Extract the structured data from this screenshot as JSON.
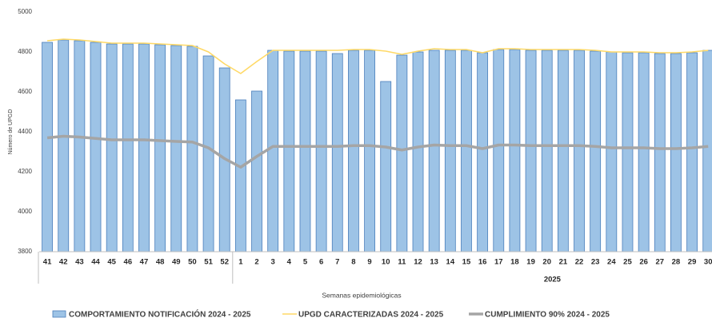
{
  "chart_data": {
    "type": "bar",
    "y_label": "Número de UPGD",
    "x_label": "Semanas epidemiológicas",
    "groups": [
      {
        "label": null,
        "categories": [
          "41",
          "42",
          "43",
          "44",
          "45",
          "46",
          "47",
          "48",
          "49",
          "50",
          "51",
          "52"
        ]
      },
      {
        "label": "2025",
        "categories": [
          "1",
          "2",
          "3",
          "4",
          "5",
          "6",
          "7",
          "8",
          "9",
          "10",
          "11",
          "12",
          "13",
          "14",
          "15",
          "16",
          "17",
          "18",
          "19",
          "20",
          "21",
          "22",
          "23",
          "24",
          "25",
          "26",
          "27",
          "28",
          "29",
          "30"
        ]
      }
    ],
    "series": [
      {
        "name": "COMPORTAMIENTO NOTIFICACIÓN 2024 - 2025",
        "type": "bar",
        "color": "#9dc3e6",
        "border": "#4a7ebb",
        "values": [
          4848,
          4860,
          4856,
          4848,
          4840,
          4840,
          4840,
          4836,
          4832,
          4828,
          4780,
          4720,
          4560,
          4604,
          4808,
          4804,
          4804,
          4804,
          4792,
          4808,
          4808,
          4652,
          4784,
          4800,
          4808,
          4808,
          4808,
          4796,
          4812,
          4812,
          4808,
          4808,
          4808,
          4808,
          4804,
          4800,
          4796,
          4796,
          4792,
          4792,
          4796,
          4808
        ]
      },
      {
        "name": "UPGD CARACTERIZADAS 2024 - 2025",
        "type": "line",
        "color": "#ffd966",
        "width": 1.6,
        "values": [
          4856,
          4864,
          4860,
          4852,
          4844,
          4844,
          4844,
          4840,
          4836,
          4832,
          4800,
          4740,
          4692,
          4752,
          4808,
          4808,
          4808,
          4808,
          4808,
          4812,
          4812,
          4804,
          4788,
          4804,
          4816,
          4812,
          4812,
          4796,
          4816,
          4816,
          4812,
          4812,
          4812,
          4812,
          4808,
          4800,
          4800,
          4800,
          4796,
          4796,
          4800,
          4808
        ]
      },
      {
        "name": "CUMPLIMIENTO 90% 2024 - 2025",
        "type": "line",
        "color": "#a5a5a5",
        "width": 3.5,
        "values": [
          4370,
          4378,
          4374,
          4367,
          4360,
          4360,
          4360,
          4356,
          4352,
          4349,
          4320,
          4266,
          4223,
          4277,
          4327,
          4327,
          4327,
          4327,
          4327,
          4331,
          4331,
          4324,
          4309,
          4324,
          4334,
          4331,
          4331,
          4316,
          4334,
          4334,
          4331,
          4331,
          4331,
          4331,
          4327,
          4320,
          4320,
          4320,
          4316,
          4316,
          4320,
          4327
        ]
      }
    ],
    "ylim": [
      3800,
      5000
    ],
    "yticks": [
      3800,
      4000,
      4200,
      4400,
      4600,
      4800,
      5000
    ],
    "grid": false
  }
}
